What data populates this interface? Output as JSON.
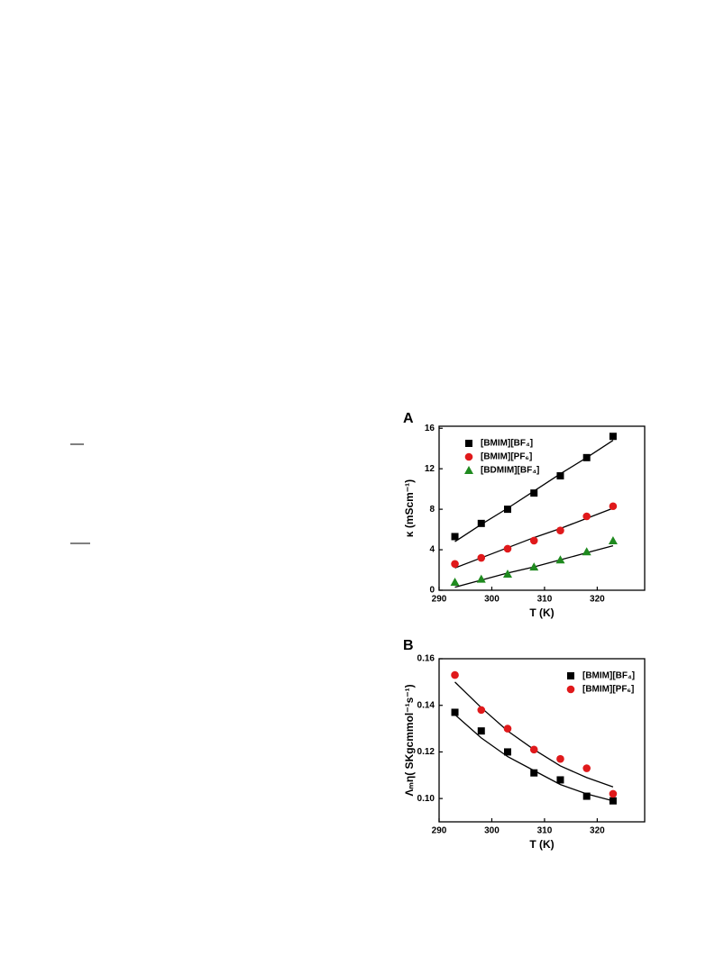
{
  "chart_data": [
    {
      "type": "scatter",
      "panel": "A",
      "xlabel": "T (K)",
      "ylabel": "κ (mScm⁻¹)",
      "x": [
        293,
        298,
        303,
        308,
        313,
        318,
        323
      ],
      "xlim": [
        290,
        329
      ],
      "xticks": [
        290,
        300,
        310,
        320
      ],
      "ylim": [
        0,
        16.2
      ],
      "yticks": [
        0,
        4,
        8,
        12,
        16
      ],
      "legend": "upper left",
      "series": [
        {
          "name": "[BMIM][BF₄]",
          "color": "#000000",
          "marker": "square",
          "values": [
            5.3,
            6.6,
            8.0,
            9.6,
            11.3,
            13.1,
            15.2
          ],
          "fit": [
            4.8,
            6.5,
            8.1,
            9.8,
            11.5,
            13.1,
            14.8
          ]
        },
        {
          "name": "[BMIM][PF₆]",
          "color": "#e0191b",
          "marker": "circle",
          "values": [
            2.6,
            3.2,
            4.1,
            4.9,
            5.9,
            7.3,
            8.3
          ],
          "fit": [
            2.2,
            3.2,
            4.2,
            5.2,
            6.1,
            7.1,
            8.1
          ]
        },
        {
          "name": "[BDMIM][BF₄]",
          "color": "#1f8a1f",
          "marker": "triangle",
          "values": [
            0.8,
            1.1,
            1.6,
            2.3,
            3.0,
            3.8,
            4.9
          ],
          "fit": [
            0.3,
            1.0,
            1.7,
            2.3,
            3.0,
            3.7,
            4.4
          ]
        }
      ]
    },
    {
      "type": "scatter",
      "panel": "B",
      "xlabel": "T (K)",
      "ylabel": "Λₘη( SKgcmmol⁻¹s⁻¹)",
      "x": [
        293,
        298,
        303,
        308,
        313,
        318,
        323
      ],
      "xlim": [
        290,
        329
      ],
      "xticks": [
        290,
        300,
        310,
        320
      ],
      "ylim": [
        0.09,
        0.16
      ],
      "yticks": [
        {
          "value": 0.1,
          "label": "0.10"
        },
        {
          "value": 0.12,
          "label": "0.12"
        },
        {
          "value": 0.14,
          "label": "0.14"
        },
        {
          "value": 0.16,
          "label": "0.16"
        }
      ],
      "legend": "upper right",
      "series": [
        {
          "name": "[BMIM][BF₄]",
          "color": "#000000",
          "marker": "square",
          "values": [
            0.137,
            0.129,
            0.12,
            0.111,
            0.108,
            0.101,
            0.099
          ],
          "fit": [
            0.136,
            0.126,
            0.118,
            0.112,
            0.106,
            0.102,
            0.099
          ]
        },
        {
          "name": "[BMIM][PF₆]",
          "color": "#e0191b",
          "marker": "circle",
          "values": [
            0.153,
            0.138,
            0.13,
            0.121,
            0.117,
            0.113,
            0.102
          ],
          "fit": [
            0.15,
            0.139,
            0.129,
            0.121,
            0.114,
            0.109,
            0.105
          ]
        }
      ]
    }
  ]
}
